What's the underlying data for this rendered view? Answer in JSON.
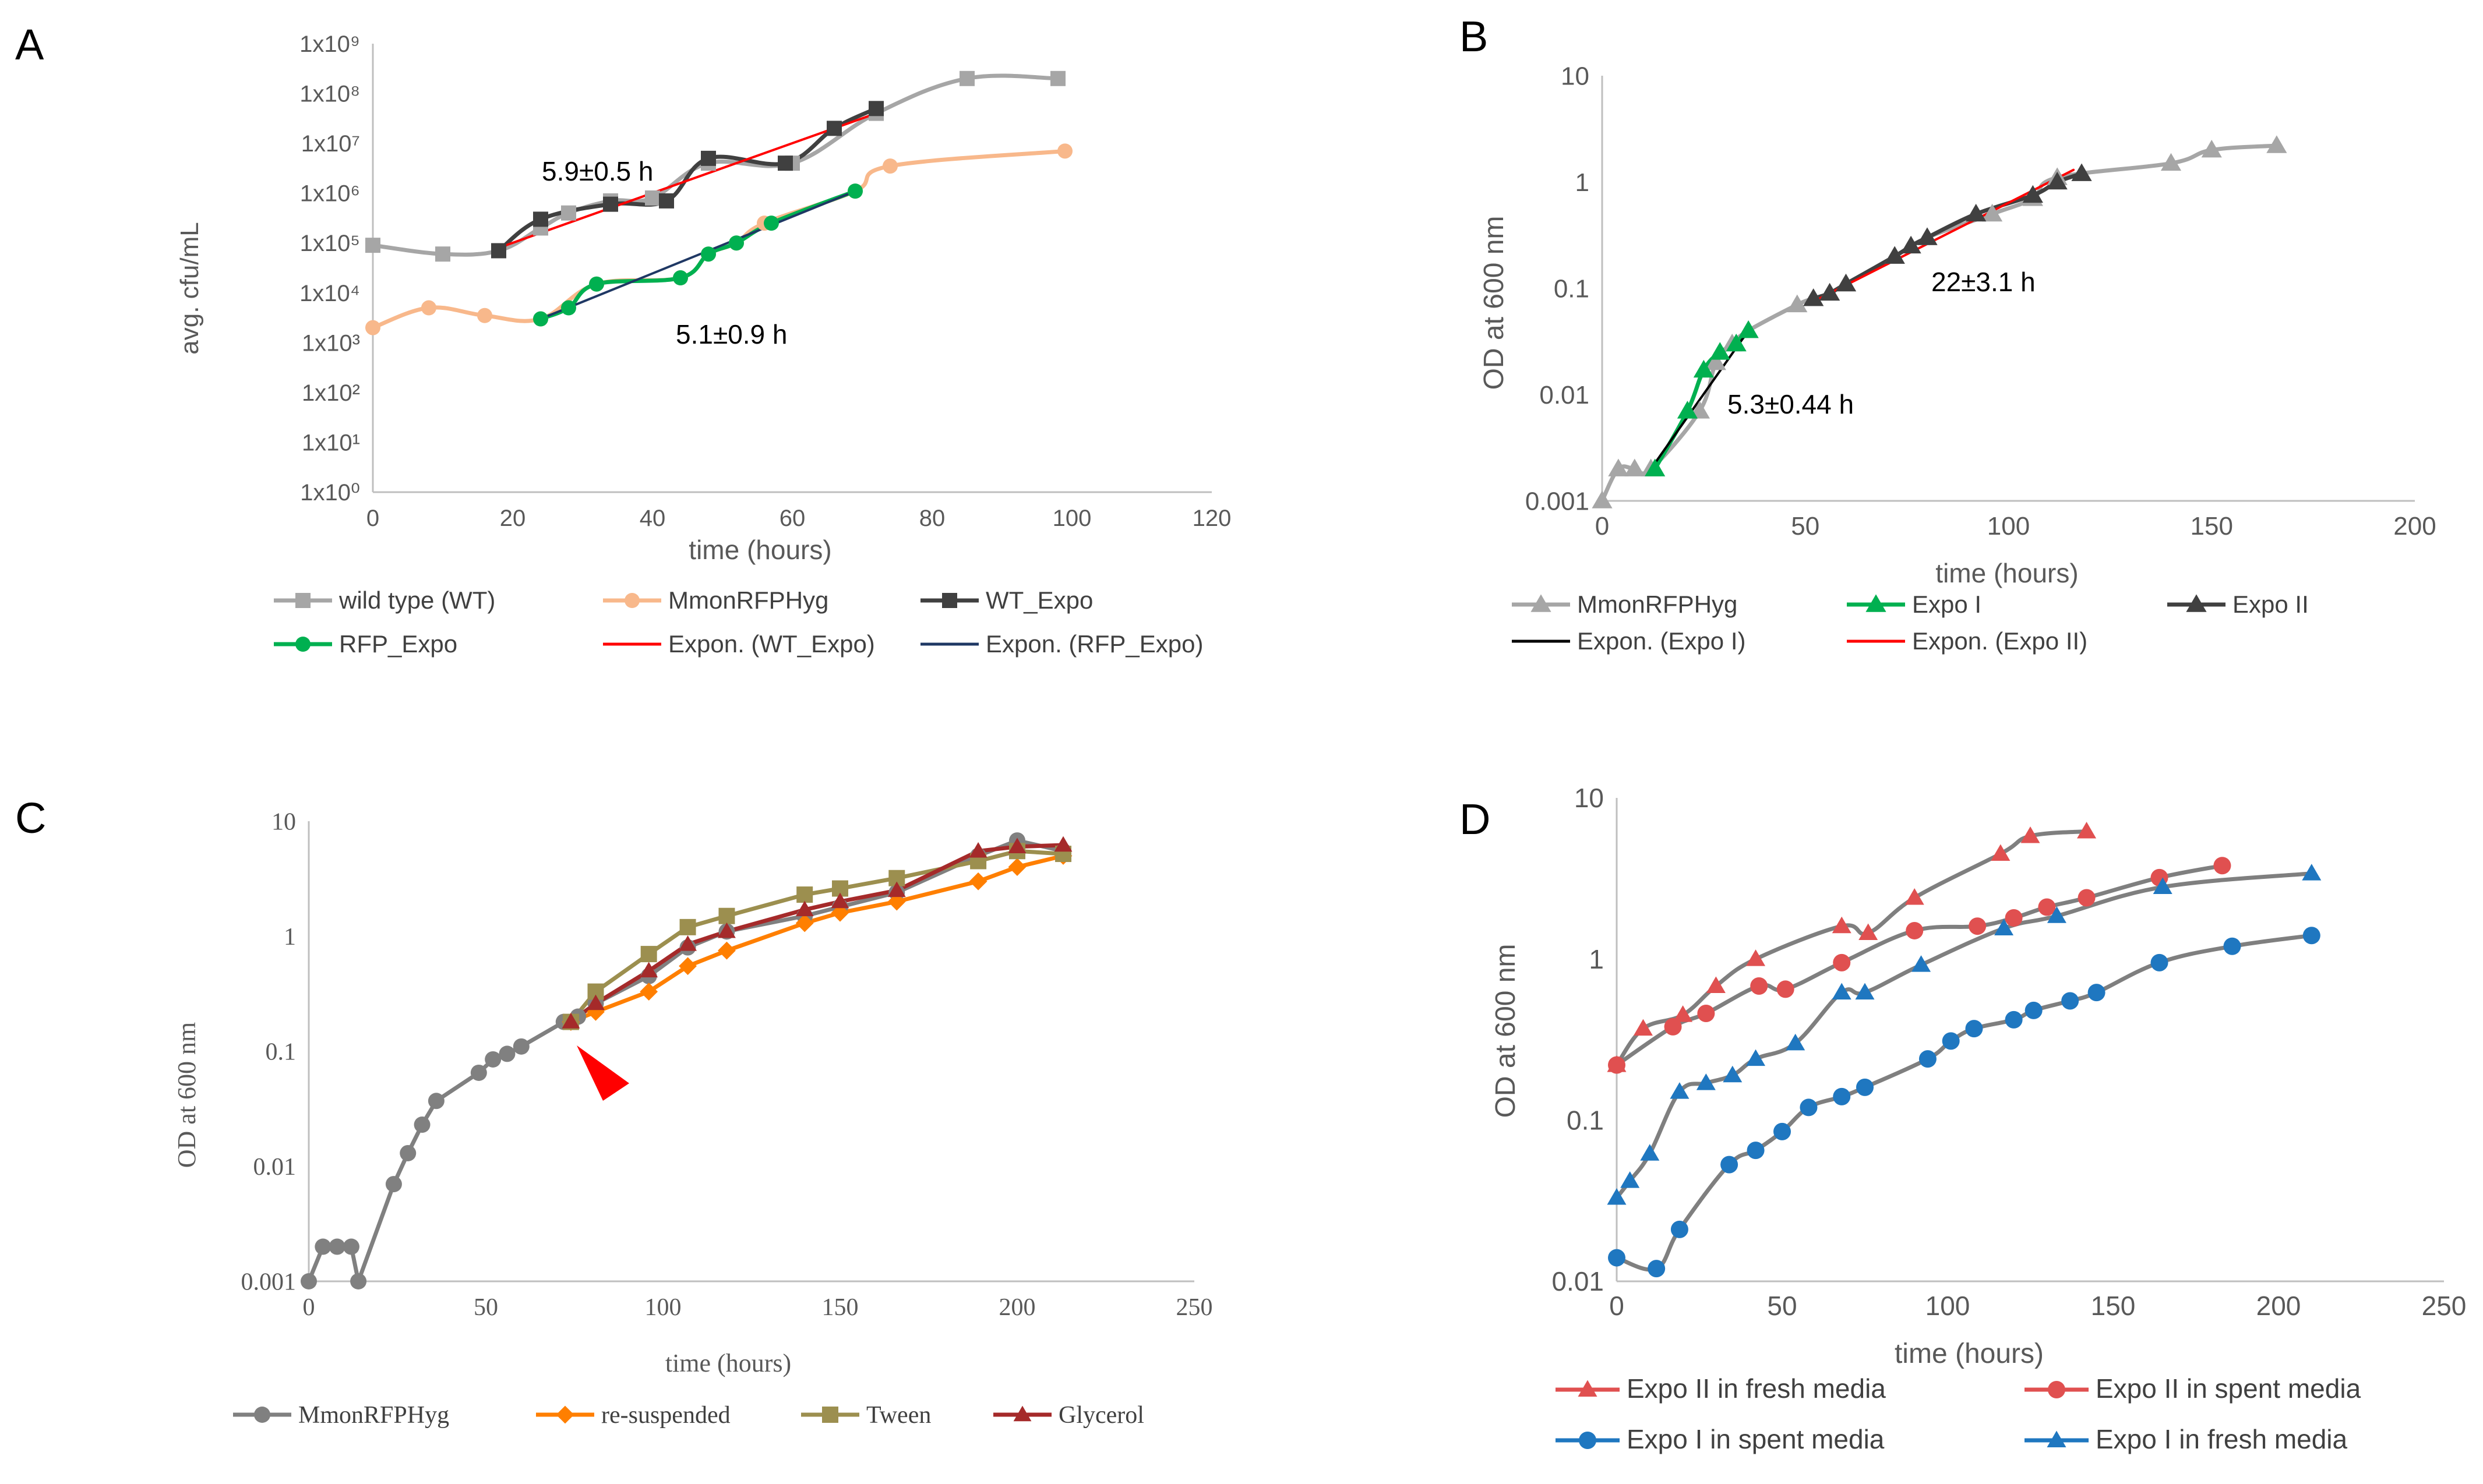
{
  "chart_data": [
    {
      "panel": "A",
      "type": "line",
      "yscale": "log",
      "xlabel": "time (hours)",
      "ylabel": "avg. cfu/mL",
      "xlim": [
        0,
        120
      ],
      "ylim": [
        1,
        1000000000
      ],
      "xticks": [
        "0",
        "20",
        "40",
        "60",
        "80",
        "100",
        "120"
      ],
      "yticks": [
        "1x10⁰",
        "1x10¹",
        "1x10²",
        "1x10³",
        "1x10⁴",
        "1x10⁵",
        "1x10⁶",
        "1x10⁷",
        "1x10⁸",
        "1x10⁹"
      ],
      "annotations": [
        "5.9±0.5 h",
        "5.1±0.9 h"
      ],
      "series": [
        {
          "name": "wild type (WT)",
          "color": "#a6a6a6",
          "marker": "square",
          "x": [
            0,
            10,
            18,
            24,
            28,
            34,
            40,
            48,
            60,
            72,
            85,
            98
          ],
          "y": [
            90000,
            60000,
            70000,
            200000,
            400000,
            700000,
            800000,
            4000000,
            4000000,
            40000000,
            200000000,
            200000000
          ]
        },
        {
          "name": "MmonRFPHyg",
          "color": "#f8b88b",
          "marker": "circle",
          "x": [
            0,
            8,
            16,
            24,
            32,
            44,
            48,
            52,
            56,
            69,
            74,
            99
          ],
          "y": [
            2000,
            5000,
            3500,
            3000,
            15000,
            20000,
            60000,
            100000,
            250000,
            1100000,
            3500000,
            7000000
          ]
        },
        {
          "name": "WT_Expo",
          "color": "#404040",
          "marker": "square",
          "x": [
            18,
            24,
            34,
            42,
            48,
            59,
            66,
            72
          ],
          "y": [
            70000,
            300000,
            600000,
            700000,
            5000000,
            4000000,
            20000000,
            50000000
          ]
        },
        {
          "name": "RFP_Expo",
          "color": "#00b050",
          "marker": "circle",
          "x": [
            24,
            28,
            32,
            44,
            48,
            52,
            57,
            69
          ],
          "y": [
            3000,
            5000,
            15000,
            20000,
            60000,
            100000,
            250000,
            1100000
          ]
        },
        {
          "name": "Expon. (WT_Expo)",
          "color": "#ff0000",
          "marker": "none",
          "x": [
            18,
            72
          ],
          "y": [
            80000,
            40000000
          ]
        },
        {
          "name": "Expon. (RFP_Expo)",
          "color": "#1f3864",
          "marker": "none",
          "x": [
            24,
            69
          ],
          "y": [
            3000,
            1100000
          ]
        }
      ]
    },
    {
      "panel": "B",
      "type": "line",
      "yscale": "log",
      "xlabel": "time (hours)",
      "ylabel": "OD at 600 nm",
      "xlim": [
        0,
        200
      ],
      "ylim": [
        0.001,
        10
      ],
      "xticks": [
        "0",
        "50",
        "100",
        "150",
        "200"
      ],
      "yticks": [
        "0.001",
        "0.01",
        "0.1",
        "1",
        "10"
      ],
      "annotations": [
        "22±3.1 h",
        "5.3±0.44 h"
      ],
      "series": [
        {
          "name": "MmonRFPHyg",
          "color": "#a6a6a6",
          "marker": "triangle",
          "x": [
            0,
            4,
            8,
            12,
            24,
            28,
            32,
            36,
            48,
            52,
            56,
            60,
            72,
            80,
            96,
            106,
            112,
            140,
            150,
            166
          ],
          "y": [
            0.001,
            0.002,
            0.002,
            0.002,
            0.007,
            0.02,
            0.03,
            0.04,
            0.07,
            0.08,
            0.09,
            0.11,
            0.2,
            0.3,
            0.5,
            0.7,
            1.1,
            1.5,
            2,
            2.2
          ]
        },
        {
          "name": "Expo I",
          "color": "#00b050",
          "marker": "triangle",
          "x": [
            13,
            21,
            25,
            29,
            33,
            36
          ],
          "y": [
            0.002,
            0.007,
            0.017,
            0.025,
            0.03,
            0.04
          ]
        },
        {
          "name": "Expo II",
          "color": "#404040",
          "marker": "triangle",
          "x": [
            52,
            56,
            60,
            72,
            76,
            80,
            92,
            106,
            112,
            118
          ],
          "y": [
            0.08,
            0.09,
            0.11,
            0.2,
            0.25,
            0.3,
            0.5,
            0.75,
            1,
            1.2
          ]
        },
        {
          "name": "Expon. (Expo I)",
          "color": "#000000",
          "marker": "none",
          "x": [
            12,
            36
          ],
          "y": [
            0.002,
            0.04
          ]
        },
        {
          "name": "Expon. (Expo II)",
          "color": "#ff0000",
          "marker": "none",
          "x": [
            52,
            116
          ],
          "y": [
            0.075,
            1.3
          ]
        }
      ]
    },
    {
      "panel": "C",
      "type": "line",
      "yscale": "log",
      "xlabel": "time (hours)",
      "ylabel": "OD at 600 nm",
      "xlim": [
        0,
        250
      ],
      "ylim": [
        0.001,
        10
      ],
      "xticks": [
        "0",
        "50",
        "100",
        "150",
        "200",
        "250"
      ],
      "yticks": [
        "0.001",
        "0.01",
        "0.1",
        "1",
        "10"
      ],
      "series": [
        {
          "name": "MmonRFPHyg",
          "color": "#808080",
          "marker": "circle",
          "x": [
            0,
            4,
            8,
            12,
            14,
            24,
            28,
            32,
            36,
            48,
            52,
            56,
            60,
            72,
            76,
            81,
            96,
            107,
            118,
            140,
            150,
            166,
            189,
            200,
            213
          ],
          "y": [
            0.001,
            0.002,
            0.002,
            0.002,
            0.001,
            0.007,
            0.013,
            0.023,
            0.037,
            0.065,
            0.085,
            0.095,
            0.11,
            0.18,
            0.2,
            0.26,
            0.45,
            0.8,
            1.1,
            1.5,
            1.8,
            2.4,
            5,
            6.8,
            5.5
          ]
        },
        {
          "name": "re-suspended",
          "color": "#ff7f00",
          "marker": "diamond",
          "x": [
            74,
            81,
            96,
            107,
            118,
            140,
            150,
            166,
            189,
            200,
            213
          ],
          "y": [
            0.18,
            0.22,
            0.33,
            0.55,
            0.75,
            1.3,
            1.6,
            2,
            3,
            4,
            5
          ]
        },
        {
          "name": "Tween",
          "color": "#9c8f4f",
          "marker": "square",
          "x": [
            74,
            81,
            96,
            107,
            118,
            140,
            150,
            166,
            189,
            200,
            213
          ],
          "y": [
            0.18,
            0.33,
            0.7,
            1.2,
            1.5,
            2.3,
            2.6,
            3.2,
            4.5,
            5.5,
            5.2
          ]
        },
        {
          "name": "Glycerol",
          "color": "#a52a2a",
          "marker": "triangle",
          "x": [
            74,
            81,
            96,
            107,
            118,
            140,
            150,
            166,
            189,
            200,
            213
          ],
          "y": [
            0.18,
            0.26,
            0.5,
            0.85,
            1.1,
            1.7,
            2,
            2.5,
            5.5,
            6,
            6.2
          ]
        }
      ]
    },
    {
      "panel": "D",
      "type": "line",
      "yscale": "log",
      "xlabel": "time (hours)",
      "ylabel": "OD at 600 nm",
      "xlim": [
        0,
        250
      ],
      "ylim": [
        0.01,
        10
      ],
      "xticks": [
        "0",
        "50",
        "100",
        "150",
        "200",
        "250"
      ],
      "yticks": [
        "0.01",
        "0.1",
        "1",
        "10"
      ],
      "series": [
        {
          "name": "Expo II in fresh media",
          "color": "#e05050",
          "marker": "triangle",
          "x": [
            0,
            8,
            20,
            30,
            42,
            68,
            76,
            90,
            116,
            125,
            142
          ],
          "y": [
            0.22,
            0.37,
            0.45,
            0.68,
            1,
            1.6,
            1.45,
            2.4,
            4.5,
            5.8,
            6.2
          ]
        },
        {
          "name": "Expo II in spent media",
          "color": "#e05050",
          "marker": "circle",
          "x": [
            0,
            17,
            27,
            43,
            51,
            68,
            90,
            109,
            120,
            130,
            142,
            164,
            183
          ],
          "y": [
            0.22,
            0.38,
            0.46,
            0.68,
            0.65,
            0.95,
            1.5,
            1.6,
            1.8,
            2.1,
            2.4,
            3.2,
            3.8
          ]
        },
        {
          "name": "Expo I in spent media",
          "color": "#1f77c0",
          "marker": "circle",
          "x": [
            0,
            12,
            19,
            34,
            42,
            50,
            58,
            68,
            75,
            94,
            101,
            108,
            120,
            126,
            137,
            145,
            164,
            186,
            210
          ],
          "y": [
            0.014,
            0.012,
            0.021,
            0.053,
            0.065,
            0.085,
            0.12,
            0.14,
            0.16,
            0.24,
            0.31,
            0.37,
            0.42,
            0.48,
            0.55,
            0.62,
            0.95,
            1.2,
            1.4
          ]
        },
        {
          "name": "Expo I in fresh media",
          "color": "#1f77c0",
          "marker": "triangle",
          "x": [
            0,
            4,
            10,
            19,
            27,
            35,
            42,
            54,
            68,
            75,
            92,
            117,
            133,
            165,
            210
          ],
          "y": [
            0.033,
            0.042,
            0.062,
            0.15,
            0.17,
            0.19,
            0.24,
            0.3,
            0.62,
            0.62,
            0.92,
            1.55,
            1.85,
            2.8,
            3.4
          ]
        }
      ]
    }
  ],
  "panel_labels": {
    "A": "A",
    "B": "B",
    "C": "C",
    "D": "D"
  },
  "superscript_digits": [
    "⁰",
    "¹",
    "²",
    "³",
    "⁴",
    "⁵",
    "⁶",
    "⁷",
    "⁸",
    "⁹"
  ]
}
